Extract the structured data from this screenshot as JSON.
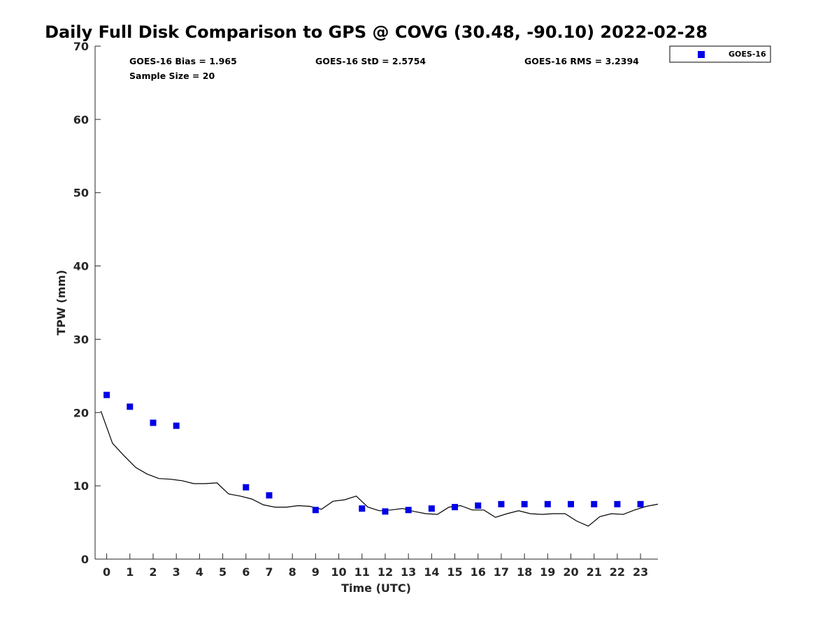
{
  "chart_data": {
    "type": "scatter",
    "title": "Daily Full Disk Comparison to GPS @ COVG (30.48, -90.10) 2022-02-28",
    "xlabel": "Time (UTC)",
    "ylabel": "TPW (mm)",
    "xlim": [
      -0.5,
      23.75
    ],
    "ylim": [
      0,
      70
    ],
    "xticks": [
      0,
      1,
      2,
      3,
      4,
      5,
      6,
      7,
      8,
      9,
      10,
      11,
      12,
      13,
      14,
      15,
      16,
      17,
      18,
      19,
      20,
      21,
      22,
      23
    ],
    "yticks": [
      0,
      10,
      20,
      30,
      40,
      50,
      60,
      70
    ],
    "grid": false,
    "legend_position": "top-right",
    "stats": {
      "bias": "GOES-16 Bias = 1.965",
      "std": "GOES-16 StD = 2.5754",
      "rms": "GOES-16 RMS = 3.2394",
      "sample": "Sample Size = 20"
    },
    "series": [
      {
        "name": "GOES-16",
        "kind": "scatter",
        "marker": "square",
        "color": "#0000e6",
        "x": [
          0,
          1,
          2,
          3,
          6,
          7,
          9,
          11,
          12,
          13,
          14,
          15,
          16,
          17,
          18,
          19,
          20,
          21,
          22,
          23
        ],
        "y": [
          22.4,
          20.8,
          18.6,
          18.2,
          9.8,
          8.7,
          6.7,
          6.9,
          6.5,
          6.7,
          6.9,
          7.1,
          7.3,
          7.5,
          7.5,
          7.5,
          7.5,
          7.5,
          7.5,
          7.5
        ]
      },
      {
        "kind": "line",
        "color": "#000000",
        "x": [
          -0.25,
          0.25,
          0.75,
          1.25,
          1.75,
          2.25,
          2.75,
          3.25,
          3.75,
          4.25,
          4.75,
          5.25,
          5.75,
          6.25,
          6.75,
          7.25,
          7.75,
          8.25,
          8.75,
          9.25,
          9.75,
          10.25,
          10.75,
          11.25,
          11.75,
          12.25,
          12.75,
          13.25,
          13.75,
          14.25,
          14.75,
          15.25,
          15.75,
          16.25,
          16.75,
          17.25,
          17.75,
          18.25,
          18.75,
          19.25,
          19.75,
          20.25,
          20.75,
          21.25,
          21.75,
          22.25,
          22.75,
          23.25,
          23.75
        ],
        "y": [
          20.2,
          15.8,
          14.1,
          12.5,
          11.6,
          11.0,
          10.9,
          10.7,
          10.3,
          10.3,
          10.4,
          8.9,
          8.6,
          8.2,
          7.4,
          7.1,
          7.1,
          7.3,
          7.2,
          6.8,
          7.9,
          8.1,
          8.6,
          7.1,
          6.6,
          6.7,
          6.9,
          6.5,
          6.2,
          6.1,
          7.1,
          7.3,
          6.7,
          6.7,
          5.7,
          6.2,
          6.6,
          6.2,
          6.1,
          6.2,
          6.2,
          5.2,
          4.5,
          5.8,
          6.2,
          6.1,
          6.7,
          7.2,
          7.5
        ]
      }
    ]
  }
}
